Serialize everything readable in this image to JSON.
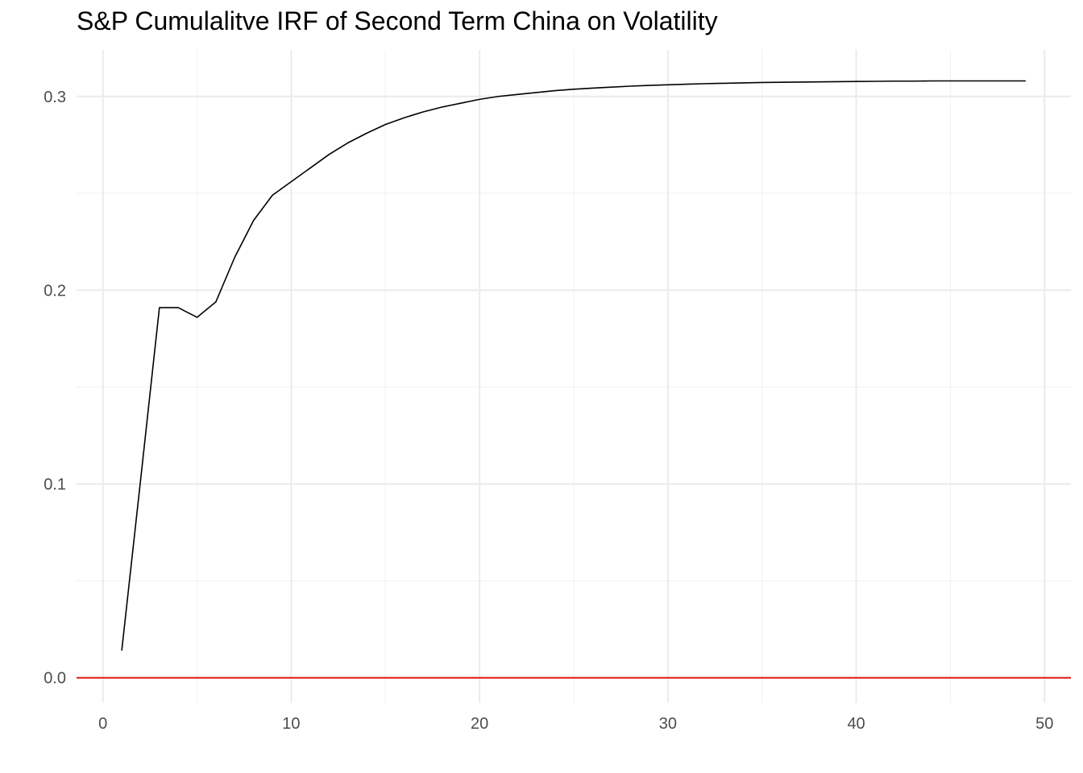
{
  "chart_data": {
    "type": "line",
    "title": "S&P Cumulalitve IRF of Second Term China on Volatility",
    "xlabel": "",
    "ylabel": "",
    "xlim": [
      -1.4,
      51.4
    ],
    "ylim": [
      -0.013,
      0.324
    ],
    "x_ticks": [
      0,
      10,
      20,
      30,
      40,
      50
    ],
    "y_ticks": [
      0.0,
      0.1,
      0.2,
      0.3
    ],
    "x_tick_labels": [
      "0",
      "10",
      "20",
      "30",
      "40",
      "50"
    ],
    "y_tick_labels": [
      "0.0",
      "0.1",
      "0.2",
      "0.3"
    ],
    "grid": true,
    "legend": "none",
    "series": [
      {
        "color": "#000000",
        "x": [
          1,
          2,
          3,
          4,
          5,
          6,
          7,
          8,
          9,
          10,
          11,
          12,
          13,
          14,
          15,
          16,
          17,
          18,
          19,
          20,
          21,
          22,
          23,
          24,
          25,
          26,
          27,
          28,
          29,
          30,
          31,
          32,
          33,
          34,
          35,
          36,
          37,
          38,
          39,
          40,
          41,
          42,
          43,
          44,
          45,
          46,
          47,
          48,
          49
        ],
        "y": [
          0.014,
          0.102,
          0.191,
          0.191,
          0.186,
          0.194,
          0.217,
          0.236,
          0.249,
          0.256,
          0.263,
          0.27,
          0.276,
          0.281,
          0.2855,
          0.289,
          0.292,
          0.2945,
          0.2965,
          0.2985,
          0.3,
          0.301,
          0.302,
          0.303,
          0.3037,
          0.3043,
          0.3048,
          0.3053,
          0.3057,
          0.306,
          0.3063,
          0.3066,
          0.3068,
          0.307,
          0.3072,
          0.3073,
          0.3074,
          0.3075,
          0.3076,
          0.3077,
          0.3078,
          0.3079,
          0.3079,
          0.308,
          0.308,
          0.308,
          0.308,
          0.308,
          0.308
        ]
      }
    ],
    "reference_line": {
      "y": 0.0,
      "color": "#e31a1c"
    }
  }
}
